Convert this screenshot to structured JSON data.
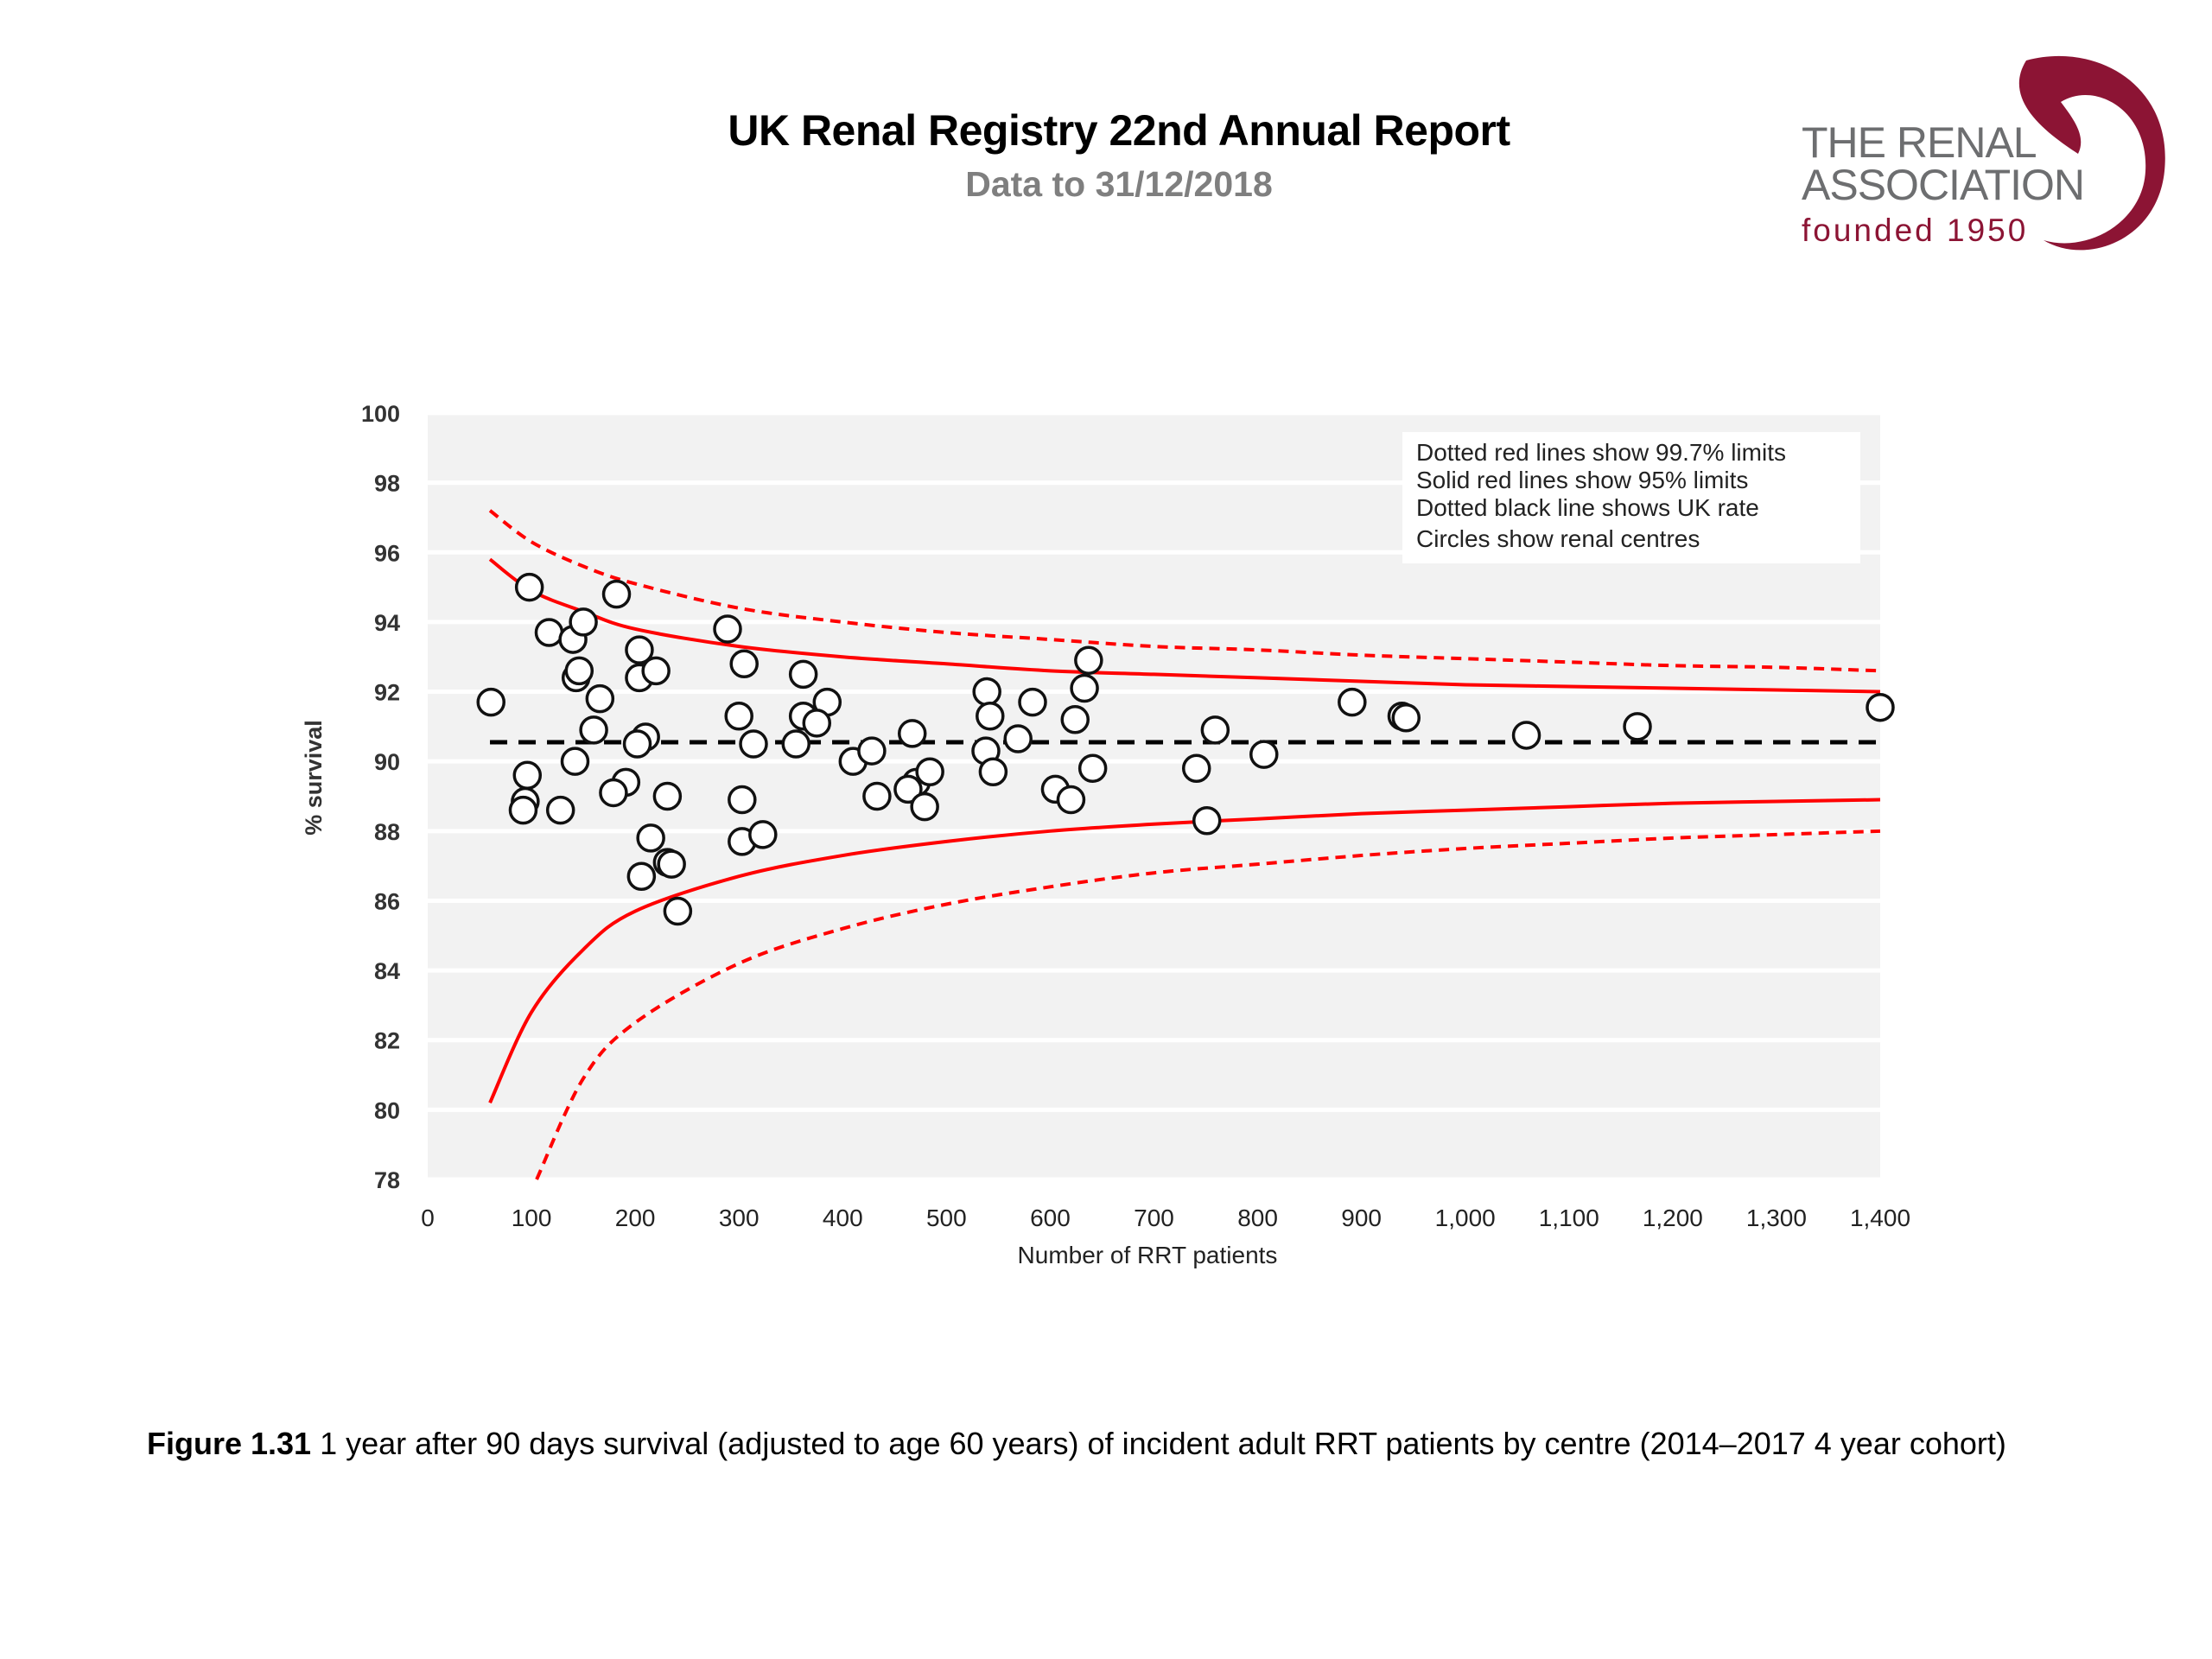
{
  "header": {
    "title": "UK Renal Registry 22nd Annual Report",
    "subtitle": "Data to 31/12/2018"
  },
  "logo": {
    "line1": "THE RENAL",
    "line2": "ASSOCIATION",
    "line3": "founded 1950",
    "text_color": "#6d6e70",
    "accent_color": "#8c1434"
  },
  "caption": {
    "label": "Figure 1.31",
    "text": " 1 year after 90 days survival (adjusted to age 60 years) of incident adult RRT patients by centre (2014–2017 4 year cohort)"
  },
  "chart_data": {
    "type": "scatter",
    "title": "",
    "xlabel": "Number of RRT patients",
    "ylabel": "% survival",
    "xlim": [
      0,
      1400
    ],
    "ylim": [
      78,
      100
    ],
    "x_ticks": [
      0,
      100,
      200,
      300,
      400,
      500,
      600,
      700,
      800,
      900,
      1000,
      1100,
      1200,
      1300,
      1400
    ],
    "x_tick_labels": [
      "0",
      "100",
      "200",
      "300",
      "400",
      "500",
      "600",
      "700",
      "800",
      "900",
      "1,000",
      "1,100",
      "1,200",
      "1,300",
      "1,400"
    ],
    "y_ticks": [
      78,
      80,
      82,
      84,
      86,
      88,
      90,
      92,
      94,
      96,
      98,
      100
    ],
    "y_tick_labels": [
      "78",
      "80",
      "82",
      "84",
      "86",
      "88",
      "90",
      "92",
      "94",
      "96",
      "98",
      "100"
    ],
    "grid": "horizontal",
    "plot_background": "#f2f2f2",
    "legend": {
      "placement": "top-right",
      "entries": [
        "Dotted red lines show 99.7% limits",
        "Solid red lines show 95% limits",
        "Dotted black line shows UK rate",
        "Circles show renal centres"
      ]
    },
    "uk_rate": 90.55,
    "limit_color": "#ff0000",
    "limits": {
      "x_range": [
        60,
        1400
      ],
      "limit_95_upper": {
        "x": [
          60,
          100,
          150,
          200,
          300,
          400,
          500,
          600,
          700,
          800,
          900,
          1000,
          1100,
          1200,
          1300,
          1400
        ],
        "y": [
          95.8,
          94.9,
          94.3,
          93.8,
          93.3,
          93.0,
          92.8,
          92.6,
          92.5,
          92.4,
          92.3,
          92.2,
          92.15,
          92.1,
          92.05,
          92.0
        ]
      },
      "limit_95_lower": {
        "x": [
          60,
          100,
          150,
          200,
          300,
          400,
          500,
          600,
          700,
          800,
          900,
          1000,
          1100,
          1200,
          1300,
          1400
        ],
        "y": [
          80.2,
          82.8,
          84.6,
          85.7,
          86.7,
          87.3,
          87.7,
          88.0,
          88.2,
          88.35,
          88.5,
          88.6,
          88.7,
          88.8,
          88.85,
          88.9
        ]
      },
      "limit_997_upper": {
        "x": [
          60,
          100,
          150,
          200,
          300,
          400,
          500,
          600,
          700,
          800,
          900,
          1000,
          1100,
          1200,
          1300,
          1400
        ],
        "y": [
          97.2,
          96.3,
          95.6,
          95.1,
          94.4,
          94.0,
          93.7,
          93.5,
          93.3,
          93.2,
          93.05,
          92.95,
          92.85,
          92.75,
          92.7,
          92.6
        ]
      },
      "limit_997_lower": {
        "x": [
          105,
          150,
          200,
          300,
          400,
          500,
          600,
          700,
          800,
          900,
          1000,
          1100,
          1200,
          1300,
          1400
        ],
        "y": [
          78.0,
          80.9,
          82.5,
          84.2,
          85.2,
          85.9,
          86.4,
          86.8,
          87.05,
          87.3,
          87.5,
          87.65,
          87.8,
          87.9,
          88.0
        ]
      }
    },
    "points": [
      {
        "x": 61,
        "y": 91.7
      },
      {
        "x": 98,
        "y": 95.0
      },
      {
        "x": 117,
        "y": 93.7
      },
      {
        "x": 140,
        "y": 93.5
      },
      {
        "x": 150,
        "y": 94.0
      },
      {
        "x": 143,
        "y": 92.4
      },
      {
        "x": 146,
        "y": 92.6
      },
      {
        "x": 166,
        "y": 91.8
      },
      {
        "x": 160,
        "y": 90.9
      },
      {
        "x": 142,
        "y": 90.0
      },
      {
        "x": 96,
        "y": 89.6
      },
      {
        "x": 94,
        "y": 88.85
      },
      {
        "x": 92,
        "y": 88.6
      },
      {
        "x": 128,
        "y": 88.6
      },
      {
        "x": 182,
        "y": 94.8
      },
      {
        "x": 204,
        "y": 93.2
      },
      {
        "x": 204,
        "y": 92.4
      },
      {
        "x": 220,
        "y": 92.6
      },
      {
        "x": 210,
        "y": 90.7
      },
      {
        "x": 202,
        "y": 90.5
      },
      {
        "x": 191,
        "y": 89.4
      },
      {
        "x": 179,
        "y": 89.1
      },
      {
        "x": 231,
        "y": 89.0
      },
      {
        "x": 215,
        "y": 87.8
      },
      {
        "x": 231,
        "y": 87.1
      },
      {
        "x": 235,
        "y": 87.05
      },
      {
        "x": 206,
        "y": 86.7
      },
      {
        "x": 241,
        "y": 85.7
      },
      {
        "x": 289,
        "y": 93.8
      },
      {
        "x": 305,
        "y": 92.8
      },
      {
        "x": 300,
        "y": 91.3
      },
      {
        "x": 314,
        "y": 90.5
      },
      {
        "x": 303,
        "y": 88.9
      },
      {
        "x": 303,
        "y": 87.7
      },
      {
        "x": 323,
        "y": 87.9
      },
      {
        "x": 362,
        "y": 92.5
      },
      {
        "x": 362,
        "y": 91.3
      },
      {
        "x": 385,
        "y": 91.7
      },
      {
        "x": 375,
        "y": 91.1
      },
      {
        "x": 355,
        "y": 90.5
      },
      {
        "x": 410,
        "y": 90.0
      },
      {
        "x": 428,
        "y": 90.3
      },
      {
        "x": 433,
        "y": 89.0
      },
      {
        "x": 467,
        "y": 90.8
      },
      {
        "x": 471,
        "y": 89.4
      },
      {
        "x": 463,
        "y": 89.2
      },
      {
        "x": 484,
        "y": 89.7
      },
      {
        "x": 479,
        "y": 88.7
      },
      {
        "x": 539,
        "y": 92.0
      },
      {
        "x": 542,
        "y": 91.3
      },
      {
        "x": 569,
        "y": 90.65
      },
      {
        "x": 538,
        "y": 90.3
      },
      {
        "x": 545,
        "y": 89.7
      },
      {
        "x": 583,
        "y": 91.7
      },
      {
        "x": 637,
        "y": 92.9
      },
      {
        "x": 633,
        "y": 92.1
      },
      {
        "x": 624,
        "y": 91.2
      },
      {
        "x": 641,
        "y": 89.8
      },
      {
        "x": 605,
        "y": 89.2
      },
      {
        "x": 620,
        "y": 88.9
      },
      {
        "x": 741,
        "y": 89.8
      },
      {
        "x": 759,
        "y": 90.9
      },
      {
        "x": 751,
        "y": 88.3
      },
      {
        "x": 806,
        "y": 90.2
      },
      {
        "x": 891,
        "y": 91.7
      },
      {
        "x": 939,
        "y": 91.3
      },
      {
        "x": 943,
        "y": 91.25
      },
      {
        "x": 1059,
        "y": 90.75
      },
      {
        "x": 1166,
        "y": 91.0
      },
      {
        "x": 1400,
        "y": 91.55
      }
    ]
  }
}
